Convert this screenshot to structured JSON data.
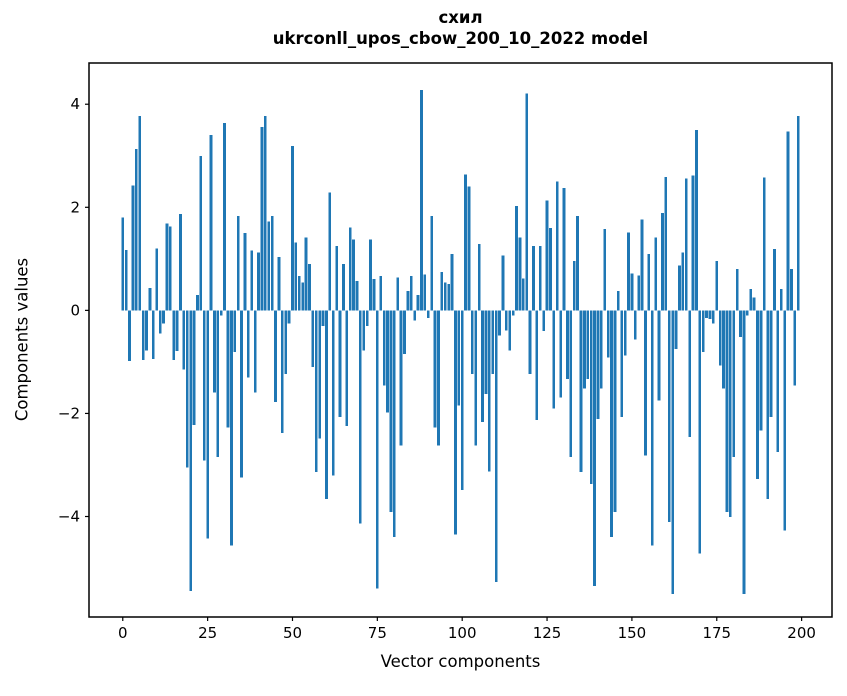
{
  "title": {
    "line1": "схил",
    "line2": "ukrconll_upos_cbow_200_10_2022 model"
  },
  "chart_data": {
    "type": "bar",
    "title": "схил — ukrconll_upos_cbow_200_10_2022 model",
    "xlabel": "Vector components",
    "ylabel": "Components values",
    "bar_color": "#1f77b4",
    "axis_color": "#000000",
    "grid": false,
    "legend_position": "none",
    "xlim": [
      -9.95,
      208.95
    ],
    "ylim": [
      -5.95,
      4.8
    ],
    "xticks": [
      0,
      25,
      50,
      75,
      100,
      125,
      150,
      175,
      200
    ],
    "yticks": [
      4,
      2,
      0,
      -2,
      -4
    ],
    "x_description": "component index 0..199",
    "values": [
      1.8,
      1.17,
      -0.98,
      2.42,
      3.13,
      3.77,
      -0.96,
      -0.78,
      0.43,
      -0.94,
      1.2,
      -0.45,
      -0.25,
      1.69,
      1.63,
      -0.96,
      -0.79,
      1.87,
      -1.15,
      -3.05,
      -5.45,
      -2.22,
      0.3,
      3.0,
      -2.91,
      -4.43,
      3.4,
      -1.59,
      -2.85,
      -0.1,
      3.64,
      -2.27,
      -4.56,
      -0.81,
      1.83,
      -3.24,
      1.5,
      -1.3,
      1.16,
      -1.59,
      1.12,
      3.56,
      3.77,
      1.72,
      1.83,
      -1.78,
      1.04,
      -2.38,
      -1.23,
      -0.25,
      3.19,
      1.32,
      0.67,
      0.54,
      1.41,
      0.9,
      -1.1,
      -3.14,
      -2.49,
      -0.3,
      -3.66,
      2.29,
      -3.2,
      1.25,
      -2.07,
      0.9,
      -2.24,
      1.61,
      1.38,
      0.57,
      -4.14,
      -0.78,
      -0.3,
      1.38,
      0.61,
      -5.4,
      0.67,
      -1.46,
      -1.98,
      -3.91,
      -4.4,
      0.64,
      -2.62,
      -0.85,
      0.38,
      0.67,
      -0.2,
      0.3,
      4.28,
      0.7,
      -0.15,
      1.83,
      -2.27,
      -2.62,
      0.74,
      0.54,
      0.51,
      1.09,
      -4.35,
      -1.85,
      -3.49,
      2.64,
      2.4,
      -1.23,
      -2.62,
      1.29,
      -2.17,
      -1.62,
      -3.13,
      -1.23,
      -5.27,
      -0.49,
      1.06,
      -0.39,
      -0.78,
      -0.1,
      2.03,
      1.41,
      0.62,
      4.21,
      -1.23,
      1.25,
      -2.13,
      1.25,
      -0.4,
      2.13,
      1.6,
      -1.9,
      2.5,
      -1.69,
      2.37,
      -1.33,
      -2.85,
      0.96,
      1.83,
      -3.14,
      -1.52,
      -1.33,
      -3.37,
      -5.35,
      -2.11,
      -1.52,
      1.58,
      -0.91,
      -4.4,
      -3.91,
      0.38,
      -2.07,
      -0.88,
      1.51,
      0.72,
      -0.57,
      0.68,
      1.76,
      -2.82,
      1.09,
      -4.56,
      1.41,
      -1.75,
      1.89,
      2.59,
      -4.11,
      -5.5,
      -0.75,
      0.87,
      1.12,
      2.56,
      -2.46,
      2.62,
      3.5,
      -4.72,
      -0.81,
      -0.15,
      -0.17,
      -0.25,
      0.96,
      -1.07,
      -1.52,
      -3.91,
      -4.01,
      -2.85,
      0.8,
      -0.52,
      -5.5,
      -0.1,
      0.41,
      0.25,
      -3.27,
      -2.33,
      2.58,
      -3.66,
      -2.07,
      1.19,
      -2.75,
      0.41,
      -4.27,
      3.47,
      0.8,
      -1.46,
      3.77
    ]
  }
}
